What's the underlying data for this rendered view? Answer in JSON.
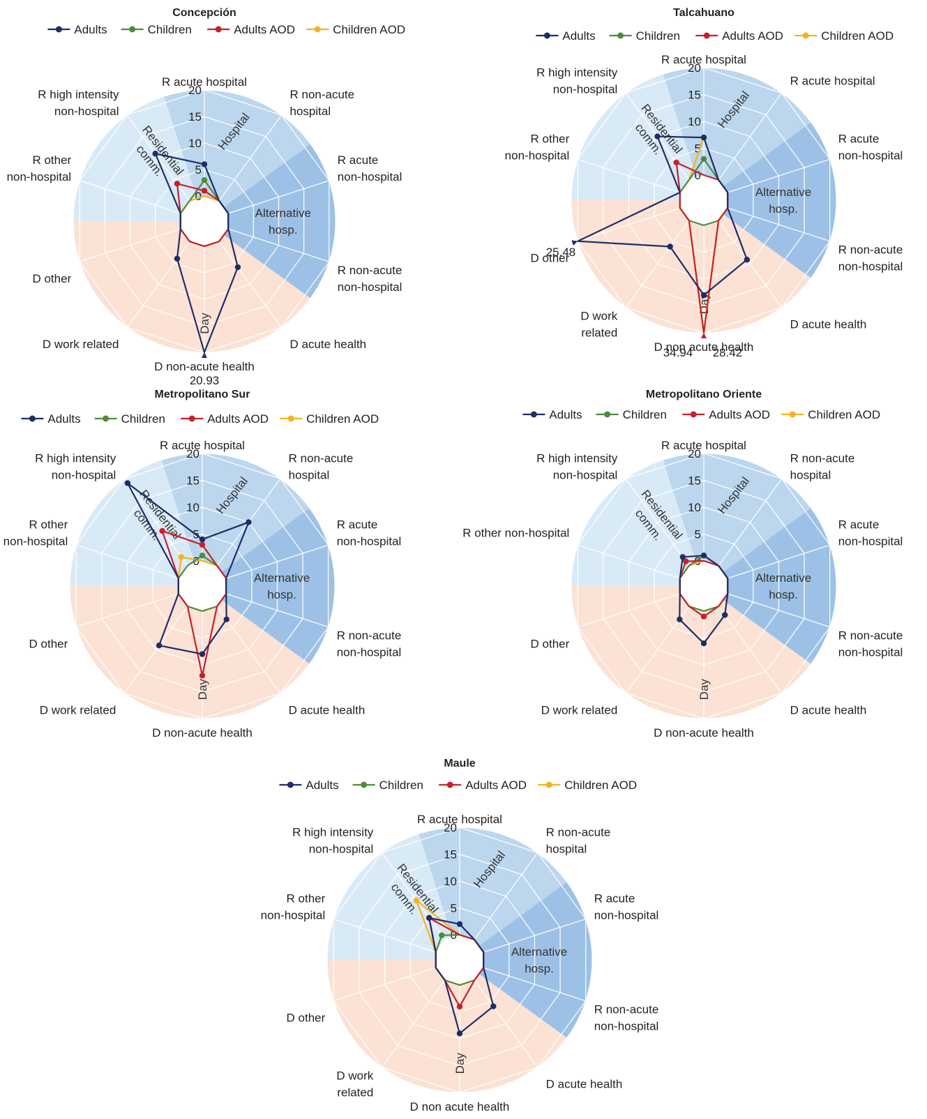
{
  "chart_data": [
    {
      "type": "radar",
      "title": "Concepción",
      "categories": [
        "R acute hospital",
        "R non-acute hospital",
        "R acute non-hospital",
        "R non-acute non-hospital",
        "D acute health",
        "D non-acute health",
        "D work related",
        "D other",
        "R other non-hospital",
        "R high intensity non-hospital"
      ],
      "axis_labels": [
        [
          "R acute hospital"
        ],
        [
          "R non-acute",
          "hospital"
        ],
        [
          "R acute",
          "non-hospital"
        ],
        [
          "R non-acute",
          "non-hospital"
        ],
        [
          "D acute health"
        ],
        [
          "D non-acute health"
        ],
        [
          "D work related"
        ],
        [
          "D other"
        ],
        [
          "R other",
          "non-hospital"
        ],
        [
          "R high intensity",
          "non-hospital"
        ]
      ],
      "rlim": [
        0,
        20
      ],
      "r_ticks": [
        "0",
        "5",
        "10",
        "15",
        "20"
      ],
      "sectors": [
        [
          "Hospital"
        ],
        [
          "Alternative",
          "hosp."
        ],
        [
          "Day"
        ],
        [
          "Residential",
          "comm."
        ]
      ],
      "series": [
        {
          "name": "Adults",
          "values": [
            6,
            0,
            0,
            0,
            6,
            20.93,
            4,
            0,
            0,
            11
          ]
        },
        {
          "name": "Children",
          "values": [
            3,
            0,
            0,
            0,
            0,
            0,
            0,
            0,
            0,
            0
          ]
        },
        {
          "name": "Adults AOD",
          "values": [
            1,
            0,
            0,
            0,
            0,
            0,
            0,
            0,
            0,
            4
          ]
        },
        {
          "name": "Children AOD",
          "values": [
            0,
            0,
            0,
            0,
            0,
            0,
            0,
            0,
            0,
            0
          ]
        }
      ],
      "annotations": [
        "20.93"
      ]
    },
    {
      "type": "radar",
      "title": "Talcahuano",
      "categories": [
        "R acute hospital",
        "R acute hospital",
        "R acute non-hospital",
        "R non-acute non-hospital",
        "D acute health",
        "D non acute health",
        "D work related",
        "D other",
        "R other non-hospital",
        "R high intensity non-hospital"
      ],
      "axis_labels": [
        [
          "R acute hospital"
        ],
        [
          "R acute hospital"
        ],
        [
          "R acute",
          "non-hospital"
        ],
        [
          "R non-acute",
          "non-hospital"
        ],
        [
          "D acute health"
        ],
        [
          "D non acute health"
        ],
        [
          "D work",
          "related"
        ],
        [
          "D other"
        ],
        [
          "R other",
          "non-hospital"
        ],
        [
          "R high intensity",
          "non-hospital"
        ]
      ],
      "rlim": [
        0,
        20
      ],
      "r_ticks": [
        "0",
        "5",
        "10",
        "15",
        "20"
      ],
      "sectors": [
        [
          "Hospital"
        ],
        [
          "Alternative",
          "hosp."
        ],
        [
          "Day"
        ],
        [
          "Residential",
          "comm."
        ]
      ],
      "series": [
        {
          "name": "Adults",
          "values": [
            7,
            0,
            0,
            0,
            9,
            13,
            6,
            25.48,
            0,
            10
          ]
        },
        {
          "name": "Children",
          "values": [
            3,
            0,
            0,
            0,
            0,
            0,
            0,
            0,
            0,
            0
          ]
        },
        {
          "name": "Adults AOD",
          "values": [
            0,
            0,
            0,
            0,
            0,
            34.94,
            0,
            0,
            0,
            4
          ]
        },
        {
          "name": "Children AOD",
          "values": [
            7,
            0,
            0,
            0,
            0,
            28.42,
            0,
            0,
            0,
            0
          ]
        }
      ],
      "annotations": [
        "25.48",
        "34.94",
        "28.42"
      ]
    },
    {
      "type": "radar",
      "title": "Metropolitano Sur",
      "categories": [
        "R acute hospital",
        "R non-acute hospital",
        "R acute non-hospital",
        "R non-acute non-hospital",
        "D acute health",
        "D non-acute health",
        "D work related",
        "D other",
        "R other non-hospital",
        "R high intensity non-hospital"
      ],
      "axis_labels": [
        [
          "R acute hospital"
        ],
        [
          "R non-acute",
          "hospital"
        ],
        [
          "R acute",
          "non-hospital"
        ],
        [
          "R non-acute",
          "non-hospital"
        ],
        [
          "D acute health"
        ],
        [
          "D non-acute health"
        ],
        [
          "D work related"
        ],
        [
          "D other"
        ],
        [
          "R other",
          "non-hospital"
        ],
        [
          "R high intensity",
          "non-hospital"
        ]
      ],
      "rlim": [
        0,
        20
      ],
      "r_ticks": [
        "0",
        "5",
        "10",
        "15",
        "20"
      ],
      "sectors": [
        [
          "Hospital"
        ],
        [
          "Alternative",
          "hosp."
        ],
        [
          "Day"
        ],
        [
          "Residential",
          "comm."
        ]
      ],
      "series": [
        {
          "name": "Adults",
          "values": [
            4,
            10,
            0,
            0,
            3,
            8,
            9,
            0,
            0,
            19
          ]
        },
        {
          "name": "Children",
          "values": [
            1,
            0,
            0,
            0,
            0,
            0,
            0,
            0,
            0,
            0
          ]
        },
        {
          "name": "Adults AOD",
          "values": [
            3,
            0,
            0,
            0,
            0,
            12,
            0,
            0,
            0,
            8
          ]
        },
        {
          "name": "Children AOD",
          "values": [
            0,
            0,
            0,
            0,
            0,
            0,
            0,
            0,
            0,
            2
          ]
        }
      ],
      "annotations": []
    },
    {
      "type": "radar",
      "title": "Metropolitano Oriente",
      "categories": [
        "R acute hospital",
        "R non-acute hospital",
        "R acute non-hospital",
        "R non-acute non-hospital",
        "D acute health",
        "D non-acute health",
        "D work related",
        "D other",
        "R other non-hospital",
        "R high intensity non-hospital"
      ],
      "axis_labels": [
        [
          "R acute hospital"
        ],
        [
          "R non-acute",
          "hospital"
        ],
        [
          "R acute",
          "non-hospital"
        ],
        [
          "R non-acute",
          "non-hospital"
        ],
        [
          "D acute health"
        ],
        [
          "D non-acute health"
        ],
        [
          "D work related"
        ],
        [
          "D other"
        ],
        [
          "R other non-hospital"
        ],
        [
          "R high intensity",
          "non-hospital"
        ]
      ],
      "rlim": [
        0,
        20
      ],
      "r_ticks": [
        "0",
        "5",
        "10",
        "15",
        "20"
      ],
      "sectors": [
        [
          "Hospital"
        ],
        [
          "Alternative",
          "hosp."
        ],
        [
          "Day"
        ],
        [
          "Residential",
          "comm."
        ]
      ],
      "series": [
        {
          "name": "Adults",
          "values": [
            1,
            0,
            0,
            0,
            2,
            6,
            3,
            0,
            0,
            2
          ]
        },
        {
          "name": "Children",
          "values": [
            1,
            0,
            0,
            0,
            0,
            0,
            0,
            0,
            0,
            0
          ]
        },
        {
          "name": "Adults AOD",
          "values": [
            0,
            0,
            0,
            0,
            0,
            1,
            0,
            0,
            0,
            1
          ]
        },
        {
          "name": "Children AOD",
          "values": [
            0,
            0,
            0,
            0,
            0,
            0,
            0,
            0,
            0,
            0
          ]
        }
      ],
      "annotations": []
    },
    {
      "type": "radar",
      "title": "Maule",
      "categories": [
        "R acute hospital",
        "R non-acute hospital",
        "R acute non-hospital",
        "R non-acute non-hospital",
        "D acute health",
        "D non acute health",
        "D work related",
        "D other",
        "R other non-hospital",
        "R high intensity non-hospital"
      ],
      "axis_labels": [
        [
          "R acute hospital"
        ],
        [
          "R non-acute",
          "hospital"
        ],
        [
          "R acute",
          "non-hospital"
        ],
        [
          "R non-acute",
          "non-hospital"
        ],
        [
          "D acute health"
        ],
        [
          "D non acute health"
        ],
        [
          "D work",
          "related"
        ],
        [
          "D other"
        ],
        [
          "R other",
          "non-hospital"
        ],
        [
          "R high intensity",
          "non-hospital"
        ]
      ],
      "rlim": [
        0,
        20
      ],
      "r_ticks": [
        "0",
        "5",
        "10",
        "15",
        "20"
      ],
      "sectors": [
        [
          "Hospital"
        ],
        [
          "Alternative",
          "hosp."
        ],
        [
          "Day"
        ],
        [
          "Residential",
          "comm."
        ]
      ],
      "series": [
        {
          "name": "Adults",
          "values": [
            2,
            0,
            0,
            0,
            6,
            9,
            0,
            0,
            0,
            5
          ]
        },
        {
          "name": "Children",
          "values": [
            0,
            0,
            0,
            0,
            0,
            0,
            0,
            0,
            0,
            1
          ]
        },
        {
          "name": "Adults AOD",
          "values": [
            0,
            0,
            0,
            0,
            0,
            4,
            0,
            0,
            0,
            5
          ]
        },
        {
          "name": "Children AOD",
          "values": [
            0,
            0,
            0,
            0,
            0,
            0,
            0,
            0,
            0,
            9
          ]
        }
      ],
      "annotations": []
    }
  ],
  "legend": [
    "Adults",
    "Children",
    "Adults AOD",
    "Children AOD"
  ],
  "colors": {
    "Adults": "#1f2d66",
    "Children": "#4e8b3a",
    "Adults AOD": "#c8202b",
    "Children AOD": "#f5b21e",
    "hospital_zone": "#bcd6ee",
    "alternative_zone": "#9dc1e6",
    "residential_zone": "#d9eaf7",
    "day_zone": "#fbe2d4"
  }
}
